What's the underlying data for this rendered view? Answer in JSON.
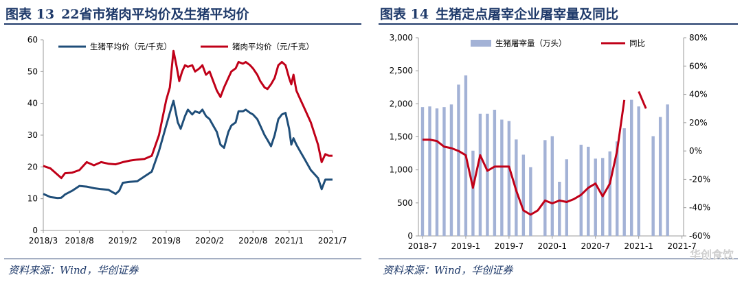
{
  "left": {
    "figure_no": "图表 13",
    "title": "22省市猪肉平均价及生猪平均价",
    "source": "资料来源：Wind，华创证券"
  },
  "right": {
    "figure_no": "图表 14",
    "title": "生猪定点屠宰企业屠宰量及同比",
    "source": "资料来源：Wind，华创证券"
  },
  "watermark": "华创食饮",
  "colors": {
    "blue": "#1f4e79",
    "red": "#c00018",
    "bar": "#a3b2d6",
    "title": "#1f3a6a"
  },
  "chart_data": [
    {
      "type": "line",
      "title": "22省市猪肉平均价及生猪平均价",
      "xlabel": "",
      "ylabel": "",
      "ylim": [
        0,
        60
      ],
      "yticks": [
        "0",
        "10",
        "20",
        "30",
        "40",
        "50",
        "60"
      ],
      "xlim": [
        0,
        40
      ],
      "xtick_labels": [
        "2018/3",
        "2018/8",
        "2019/2",
        "2019/8",
        "2020/2",
        "2020/8",
        "2021/1",
        "2021/7"
      ],
      "xtick_pos": [
        0,
        5,
        11,
        17,
        23,
        29,
        34,
        40
      ],
      "series": [
        {
          "name": "生猪平均价（元/千克）",
          "color": "#1f4e79",
          "points": [
            [
              0,
              11.5
            ],
            [
              1,
              10.5
            ],
            [
              2,
              10.2
            ],
            [
              2.5,
              10.3
            ],
            [
              3,
              11.3
            ],
            [
              4,
              12.5
            ],
            [
              5,
              14.0
            ],
            [
              6,
              13.8
            ],
            [
              7,
              13.3
            ],
            [
              8,
              13.0
            ],
            [
              9,
              12.8
            ],
            [
              10,
              11.5
            ],
            [
              10.5,
              12.5
            ],
            [
              11,
              15.0
            ],
            [
              12,
              15.3
            ],
            [
              13,
              15.5
            ],
            [
              14,
              17.0
            ],
            [
              15,
              18.5
            ],
            [
              16,
              25.0
            ],
            [
              17,
              33.0
            ],
            [
              17.5,
              37.0
            ],
            [
              18,
              40.8
            ],
            [
              18.6,
              34.0
            ],
            [
              19,
              32.0
            ],
            [
              19.6,
              36.0
            ],
            [
              20,
              38.0
            ],
            [
              20.6,
              36.5
            ],
            [
              21,
              37.5
            ],
            [
              21.6,
              37.0
            ],
            [
              22,
              38.0
            ],
            [
              22.5,
              36.0
            ],
            [
              23,
              35.0
            ],
            [
              23.5,
              33.0
            ],
            [
              24,
              31.0
            ],
            [
              24.5,
              27.0
            ],
            [
              25,
              26.0
            ],
            [
              25.6,
              31.0
            ],
            [
              26,
              33.0
            ],
            [
              26.6,
              34.0
            ],
            [
              27,
              37.5
            ],
            [
              27.6,
              37.5
            ],
            [
              28,
              38.0
            ],
            [
              28.6,
              37.0
            ],
            [
              29,
              36.5
            ],
            [
              29.6,
              35.0
            ],
            [
              30,
              33.0
            ],
            [
              30.6,
              30.0
            ],
            [
              31,
              28.5
            ],
            [
              31.5,
              26.5
            ],
            [
              32,
              30.0
            ],
            [
              32.5,
              35.0
            ],
            [
              33,
              36.5
            ],
            [
              33.5,
              37.0
            ],
            [
              34,
              32.0
            ],
            [
              34.3,
              27.0
            ],
            [
              34.6,
              29.0
            ],
            [
              35,
              27.0
            ],
            [
              35.5,
              25.0
            ],
            [
              36,
              23.0
            ],
            [
              37,
              19.0
            ],
            [
              38,
              16.5
            ],
            [
              38.5,
              13.0
            ],
            [
              39,
              16.0
            ],
            [
              39.5,
              16.0
            ],
            [
              40,
              16.0
            ]
          ]
        },
        {
          "name": "猪肉平均价（元/千克）",
          "color": "#c00018",
          "points": [
            [
              0,
              20.3
            ],
            [
              1,
              19.5
            ],
            [
              2,
              17.5
            ],
            [
              2.5,
              16.5
            ],
            [
              3,
              18.0
            ],
            [
              4,
              18.2
            ],
            [
              5,
              19.0
            ],
            [
              6,
              21.5
            ],
            [
              7,
              20.5
            ],
            [
              8,
              21.5
            ],
            [
              9,
              21.0
            ],
            [
              10,
              20.8
            ],
            [
              11,
              21.5
            ],
            [
              12,
              22.0
            ],
            [
              13,
              22.3
            ],
            [
              14,
              22.5
            ],
            [
              15,
              23.5
            ],
            [
              16,
              30.0
            ],
            [
              17,
              41.0
            ],
            [
              17.5,
              45.0
            ],
            [
              18,
              56.5
            ],
            [
              18.4,
              52.0
            ],
            [
              18.8,
              47.0
            ],
            [
              19.2,
              50.0
            ],
            [
              19.6,
              52.0
            ],
            [
              20,
              51.5
            ],
            [
              20.6,
              52.0
            ],
            [
              21,
              50.0
            ],
            [
              21.6,
              51.0
            ],
            [
              22,
              52.0
            ],
            [
              22.5,
              49.0
            ],
            [
              23,
              50.0
            ],
            [
              23.5,
              47.0
            ],
            [
              24,
              44.0
            ],
            [
              24.5,
              42.0
            ],
            [
              25,
              45.0
            ],
            [
              25.6,
              48.0
            ],
            [
              26,
              50.0
            ],
            [
              26.6,
              51.0
            ],
            [
              27,
              53.0
            ],
            [
              27.6,
              52.5
            ],
            [
              28,
              53.0
            ],
            [
              28.6,
              52.0
            ],
            [
              29,
              51.0
            ],
            [
              29.6,
              49.0
            ],
            [
              30,
              47.0
            ],
            [
              30.6,
              45.0
            ],
            [
              31,
              44.5
            ],
            [
              31.5,
              46.0
            ],
            [
              32,
              48.0
            ],
            [
              32.5,
              52.0
            ],
            [
              33,
              53.0
            ],
            [
              33.5,
              52.0
            ],
            [
              34,
              48.0
            ],
            [
              34.3,
              46.0
            ],
            [
              34.6,
              49.0
            ],
            [
              35,
              44.0
            ],
            [
              35.5,
              41.5
            ],
            [
              36,
              39.0
            ],
            [
              37,
              34.0
            ],
            [
              38,
              27.0
            ],
            [
              38.5,
              21.5
            ],
            [
              39,
              24.0
            ],
            [
              39.5,
              23.5
            ],
            [
              40,
              23.5
            ]
          ]
        }
      ]
    },
    {
      "type": "bar+line",
      "title": "生猪定点屠宰企业屠宰量及同比",
      "xlabel": "",
      "ylabel": "",
      "ylim": [
        0,
        3000
      ],
      "y2lim": [
        -60,
        80
      ],
      "yticks": [
        "0",
        "500",
        "1,000",
        "1,500",
        "2,000",
        "2,500",
        "3,000"
      ],
      "y2ticks": [
        "-60%",
        "-40%",
        "-20%",
        "0%",
        "20%",
        "40%",
        "60%",
        "80%"
      ],
      "xtick_labels": [
        "2018-7",
        "2019-1",
        "2019-7",
        "2020-1",
        "2020-7",
        "2021-1",
        "2021-7"
      ],
      "xtick_pos": [
        0,
        6,
        12,
        18,
        24,
        30,
        36
      ],
      "x_count": 37,
      "series": [
        {
          "name": "生猪屠宰量（万头）",
          "kind": "bar",
          "axis": "left",
          "color": "#a3b2d6",
          "values": [
            1950,
            1960,
            1930,
            1950,
            1990,
            2290,
            2430,
            1290,
            1850,
            1850,
            1910,
            1760,
            1740,
            1460,
            1230,
            1040,
            null,
            1450,
            1510,
            820,
            1160,
            null,
            1380,
            1350,
            1170,
            1180,
            1280,
            1430,
            1630,
            2060,
            1960,
            null,
            1510,
            1800,
            1990,
            null,
            null
          ]
        },
        {
          "name": "同比",
          "kind": "line",
          "axis": "right",
          "color": "#c00018",
          "values": [
            8,
            8,
            7,
            3,
            2,
            0,
            -3,
            -26,
            -3,
            -14,
            -11,
            -11,
            -11,
            -28,
            -42,
            -45,
            -42,
            -35,
            -37,
            -35,
            -36,
            -34,
            -31,
            -26,
            -23,
            -32,
            -23,
            0,
            36,
            null,
            42,
            30,
            null,
            null,
            null,
            null,
            null
          ]
        }
      ]
    }
  ]
}
